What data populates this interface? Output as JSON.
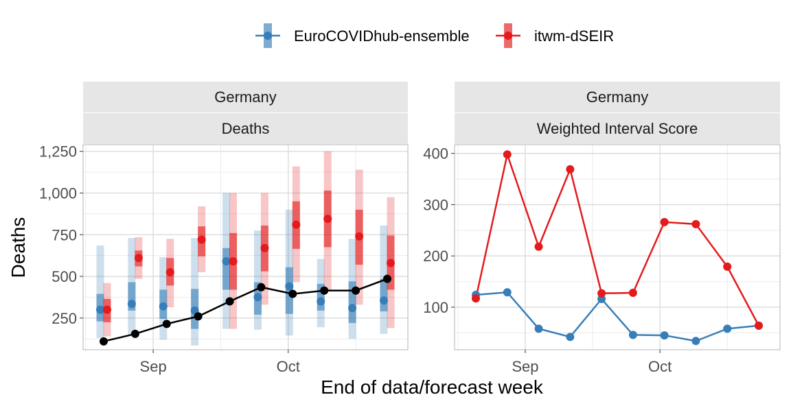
{
  "chart_data": {
    "type": "line",
    "xlabel": "End of data/forecast week",
    "legend": {
      "position": "top",
      "entries": [
        {
          "name": "EuroCOVIDhub-ensemble",
          "color": "#377EB8"
        },
        {
          "name": "itwm-dSEIR",
          "color": "#E41A1C"
        }
      ]
    },
    "observed_color": "#000000",
    "x_dates": [
      "2021-08-21",
      "2021-08-28",
      "2021-09-04",
      "2021-09-11",
      "2021-09-18",
      "2021-09-25",
      "2021-10-02",
      "2021-10-09",
      "2021-10-16",
      "2021-10-23"
    ],
    "x_tick_labels": [
      {
        "date": "2021-09-01",
        "label": "Sep"
      },
      {
        "date": "2021-10-01",
        "label": "Oct"
      }
    ],
    "panels": [
      {
        "strip_top": "Germany",
        "strip_bottom": "Deaths",
        "ylabel": "Deaths",
        "ylim": [
          60,
          1290
        ],
        "y_ticks": [
          250,
          500,
          750,
          1000,
          1250
        ],
        "y_tick_labels": [
          "250",
          "500",
          "750",
          "1,000",
          "1,250"
        ],
        "observed": [
          110,
          155,
          215,
          260,
          350,
          435,
          395,
          415,
          415,
          485
        ],
        "series": [
          {
            "name": "EuroCOVIDhub-ensemble",
            "median": [
              300,
              335,
              320,
              295,
              590,
              375,
              440,
              350,
              310,
              355
            ],
            "inner": [
              [
                230,
                395
              ],
              [
                295,
                465
              ],
              [
                245,
                420
              ],
              [
                185,
                425
              ],
              [
                420,
                670
              ],
              [
                270,
                465
              ],
              [
                275,
                555
              ],
              [
                295,
                455
              ],
              [
                220,
                470
              ],
              [
                290,
                485
              ]
            ],
            "outer": [
              [
                130,
                685
              ],
              [
                150,
                730
              ],
              [
                120,
                615
              ],
              [
                85,
                730
              ],
              [
                185,
                1000
              ],
              [
                180,
                775
              ],
              [
                145,
                900
              ],
              [
                195,
                605
              ],
              [
                125,
                725
              ],
              [
                155,
                805
              ]
            ]
          },
          {
            "name": "itwm-dSEIR",
            "median": [
              300,
              610,
              525,
              720,
              590,
              670,
              810,
              845,
              740,
              580
            ],
            "inner": [
              [
                225,
                365
              ],
              [
                560,
                655
              ],
              [
                445,
                610
              ],
              [
                620,
                800
              ],
              [
                420,
                760
              ],
              [
                530,
                805
              ],
              [
                665,
                950
              ],
              [
                675,
                1015
              ],
              [
                570,
                900
              ],
              [
                420,
                745
              ]
            ],
            "outer": [
              [
                140,
                460
              ],
              [
                485,
                735
              ],
              [
                315,
                725
              ],
              [
                525,
                920
              ],
              [
                185,
                1000
              ],
              [
                330,
                1000
              ],
              [
                465,
                1160
              ],
              [
                420,
                1250
              ],
              [
                330,
                1140
              ],
              [
                190,
                975
              ]
            ]
          }
        ]
      },
      {
        "strip_top": "Germany",
        "strip_bottom": "Weighted Interval Score",
        "ylabel": "",
        "ylim": [
          17,
          417
        ],
        "y_ticks": [
          100,
          200,
          300,
          400
        ],
        "y_tick_labels": [
          "100",
          "200",
          "300",
          "400"
        ],
        "series": [
          {
            "name": "EuroCOVIDhub-ensemble",
            "values": [
              124,
              129,
              58,
              42,
              116,
              46,
              45,
              34,
              58,
              64
            ]
          },
          {
            "name": "itwm-dSEIR",
            "values": [
              117,
              398,
              218,
              369,
              127,
              128,
              266,
              262,
              179,
              64
            ]
          }
        ]
      }
    ]
  }
}
